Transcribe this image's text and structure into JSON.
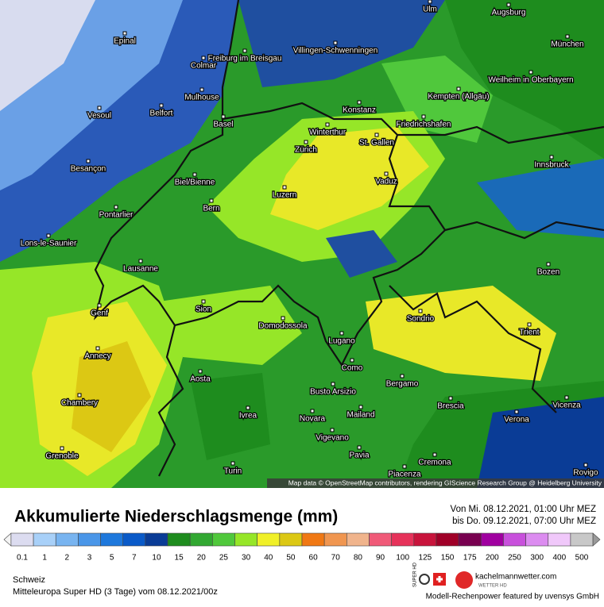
{
  "map": {
    "cities": [
      "Epinal",
      "Colmar",
      "Freiburg im Breisgau",
      "Villingen-Schwenningen",
      "Ulm",
      "Augsburg",
      "München",
      "Weilheim in Oberbayern",
      "Kempten (Allgäu)",
      "Mulhouse",
      "Belfort",
      "Vesoul",
      "Basel",
      "Konstanz",
      "Friedrichshafen",
      "Winterthur",
      "Zürich",
      "St. Gallen",
      "Besançon",
      "Biel/Bienne",
      "Vaduz",
      "Innsbruck",
      "Luzern",
      "Bern",
      "Pontarlier",
      "Lons-le-Saunier",
      "Lausanne",
      "Bozen",
      "Genf",
      "Sion",
      "Domodossola",
      "Sondrio",
      "Trient",
      "Annecy",
      "Lugano",
      "Como",
      "Aosta",
      "Busto Arsizio",
      "Bergamo",
      "Chambery",
      "Brescia",
      "Ivrea",
      "Novara",
      "Mailand",
      "Verona",
      "Vicenza",
      "Vigevano",
      "Grenoble",
      "Pavia",
      "Cremona",
      "Turin",
      "Piacenza",
      "Rovigo"
    ],
    "attribution": "Map data © OpenStreetMap contributors, rendering GIScience Research Group @ Heidelberg University"
  },
  "header": {
    "title": "Akkumulierte Niederschlagsmenge (mm)",
    "period_from": "Von Mi. 08.12.2021, 01:00 Uhr MEZ",
    "period_to": "bis Do. 09.12.2021, 07:00 Uhr MEZ"
  },
  "legend": {
    "levels": [
      0.1,
      1,
      2,
      3,
      5,
      7,
      10,
      15,
      20,
      25,
      30,
      40,
      50,
      60,
      70,
      80,
      90,
      100,
      125,
      150,
      175,
      200,
      250,
      300,
      400,
      500
    ],
    "colors": [
      "#dcdcf0",
      "#a8d0f8",
      "#78b4f0",
      "#4a96e8",
      "#1e78dc",
      "#0a5ac8",
      "#0a3c96",
      "#1e8c1e",
      "#32a832",
      "#50c83c",
      "#96e628",
      "#f0f028",
      "#dcc814",
      "#f07814",
      "#f09650",
      "#f0b48c",
      "#f05a78",
      "#e6325a",
      "#c8143c",
      "#a00028",
      "#780050",
      "#a000a0",
      "#c850dc",
      "#dc8cf0",
      "#f0c8fa",
      "#c8c8c8"
    ]
  },
  "footer": {
    "region": "Schweiz",
    "model": "Mitteleuropa Super HD (3 Tage) vom 08.12.2021/00z",
    "brand": "kachelmannwetter.com",
    "brand_sub": "WETTER HD",
    "badge": "SUPER HD",
    "credit": "Modell-Rechenpower featured by uvensys GmbH"
  }
}
